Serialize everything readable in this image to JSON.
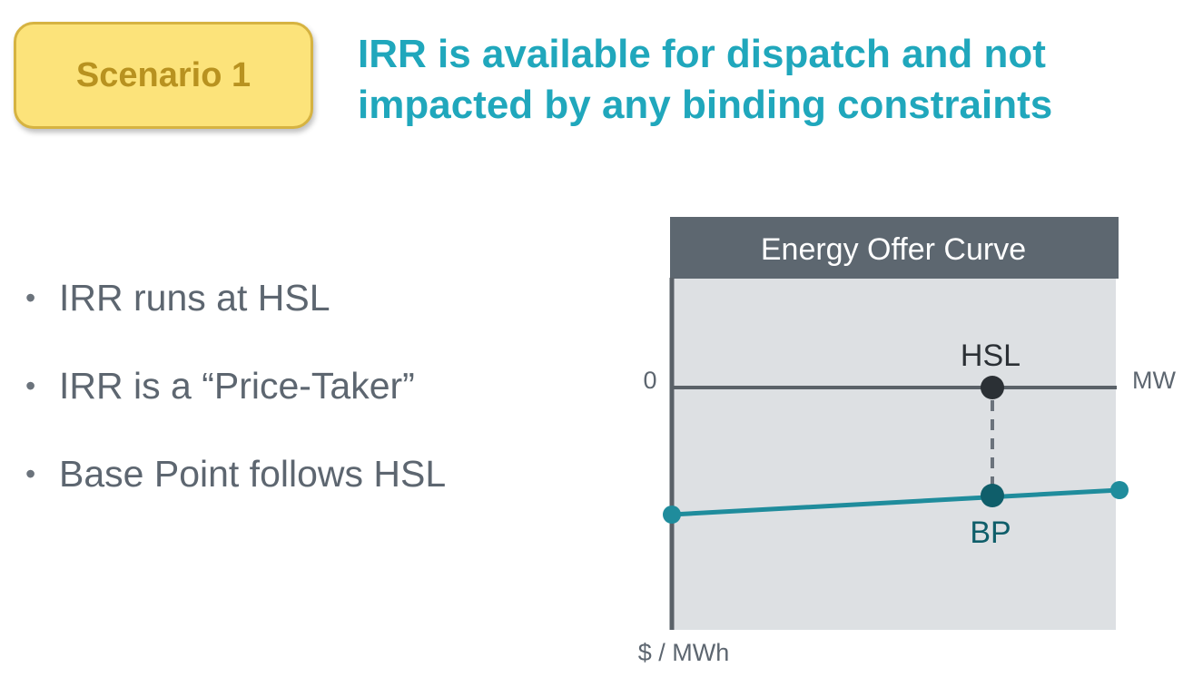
{
  "badge": {
    "label": "Scenario 1"
  },
  "headline": {
    "line1": "IRR is available for dispatch and not",
    "line2": "impacted by any binding constraints"
  },
  "bullets": [
    "IRR runs at HSL",
    "IRR is a “Price-Taker”",
    "Base Point follows HSL"
  ],
  "diagram": {
    "title": "Energy Offer Curve",
    "zero_label": "0",
    "x_axis_label": "MW",
    "y_axis_label": "$ / MWh",
    "hsl_label": "HSL",
    "bp_label": "BP"
  },
  "colors": {
    "headline": "#20a7bc",
    "badge_fill": "#fce37a",
    "badge_border": "#d6b341",
    "badge_text": "#b89220",
    "bullet_text": "#5d6670",
    "panel_header": "#5d6770",
    "panel_body": "#dde0e3",
    "curve": "#1f8c9c",
    "bp_point": "#0f5e6a",
    "hsl_point": "#2b3035",
    "axis": "#5a6168"
  }
}
